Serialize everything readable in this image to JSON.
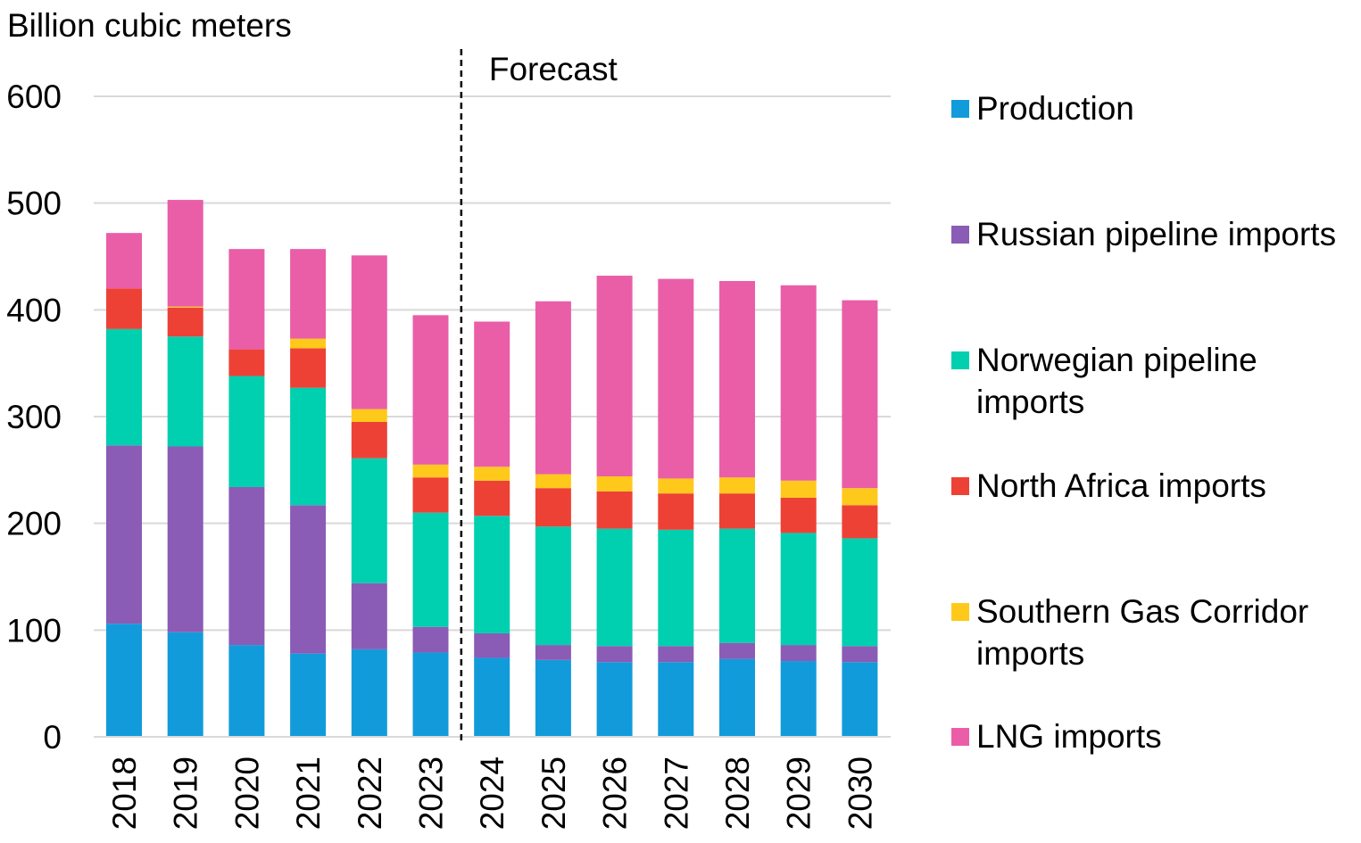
{
  "chart_data": {
    "type": "bar",
    "stacked": true,
    "ylabel": "Billion cubic meters",
    "ylim": [
      0,
      600
    ],
    "yticks": [
      0,
      100,
      200,
      300,
      400,
      500,
      600
    ],
    "grid": true,
    "legend_position": "right",
    "categories": [
      "2018",
      "2019",
      "2020",
      "2021",
      "2022",
      "2023",
      "2024",
      "2025",
      "2026",
      "2027",
      "2028",
      "2029",
      "2030"
    ],
    "annotation": {
      "text": "Forecast",
      "between": [
        "2023",
        "2024"
      ],
      "style": "dashed-vertical-line"
    },
    "series": [
      {
        "name": "Production",
        "color": "#129BDB",
        "values": [
          106,
          98,
          86,
          78,
          82,
          79,
          74,
          72,
          70,
          70,
          73,
          71,
          70
        ]
      },
      {
        "name": "Russian pipeline imports",
        "color": "#8A5CB5",
        "values": [
          167,
          174,
          148,
          139,
          62,
          24,
          23,
          14,
          15,
          15,
          15,
          15,
          15
        ]
      },
      {
        "name": "Norwegian pipeline imports",
        "color": "#00CFB0",
        "values": [
          109,
          103,
          104,
          110,
          117,
          107,
          110,
          111,
          110,
          109,
          107,
          105,
          101
        ]
      },
      {
        "name": "North Africa imports",
        "color": "#EE4136",
        "values": [
          38,
          27,
          25,
          37,
          34,
          33,
          33,
          36,
          35,
          34,
          33,
          33,
          31
        ]
      },
      {
        "name": "Southern Gas Corridor imports",
        "color": "#FFC91B",
        "values": [
          0,
          1,
          0,
          9,
          12,
          12,
          13,
          13,
          14,
          14,
          15,
          16,
          16
        ]
      },
      {
        "name": "LNG imports",
        "color": "#EA5EA7",
        "values": [
          52,
          100,
          94,
          84,
          144,
          140,
          136,
          162,
          188,
          187,
          184,
          183,
          176
        ]
      }
    ]
  }
}
